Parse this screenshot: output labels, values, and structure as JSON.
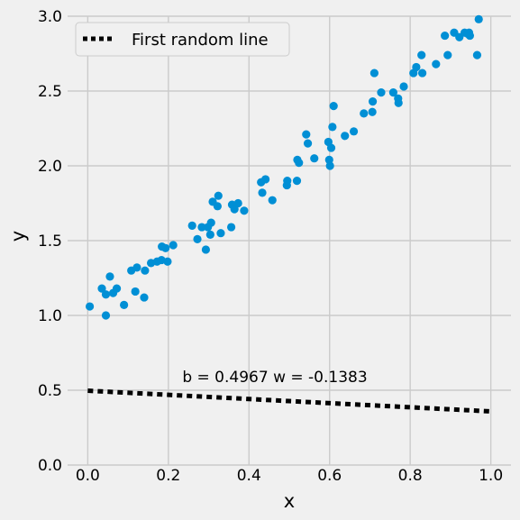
{
  "chart_data": {
    "type": "scatter",
    "xlabel": "x",
    "ylabel": "y",
    "xlim": [
      -0.05,
      1.05
    ],
    "ylim": [
      0.0,
      3.0
    ],
    "xticks": [
      0.0,
      0.2,
      0.4,
      0.6,
      0.8,
      1.0
    ],
    "xtick_labels": [
      "0.0",
      "0.2",
      "0.4",
      "0.6",
      "0.8",
      "1.0"
    ],
    "yticks": [
      0.0,
      0.5,
      1.0,
      1.5,
      2.0,
      2.5,
      3.0
    ],
    "ytick_labels": [
      "0.0",
      "0.5",
      "1.0",
      "1.5",
      "2.0",
      "2.5",
      "3.0"
    ],
    "grid": true,
    "legend_position": "top-left",
    "colors": {
      "points": "#008fd5",
      "line": "#000000",
      "background": "#f0f0f0",
      "grid": "#cbcbcb"
    },
    "annotation": {
      "text": "b = 0.4967 w = -0.1383",
      "x": 0.5,
      "y": 0.55
    },
    "line": {
      "name": "First random line",
      "style": "dotted",
      "x": [
        0.0,
        1.0
      ],
      "y": [
        0.4967,
        0.3584
      ]
    },
    "points": [
      [
        0.005,
        1.06
      ],
      [
        0.035,
        1.18
      ],
      [
        0.045,
        1.0
      ],
      [
        0.045,
        1.14
      ],
      [
        0.055,
        1.26
      ],
      [
        0.063,
        1.15
      ],
      [
        0.072,
        1.18
      ],
      [
        0.09,
        1.07
      ],
      [
        0.108,
        1.3
      ],
      [
        0.118,
        1.16
      ],
      [
        0.122,
        1.32
      ],
      [
        0.14,
        1.12
      ],
      [
        0.142,
        1.3
      ],
      [
        0.157,
        1.35
      ],
      [
        0.172,
        1.36
      ],
      [
        0.183,
        1.37
      ],
      [
        0.184,
        1.46
      ],
      [
        0.193,
        1.45
      ],
      [
        0.198,
        1.36
      ],
      [
        0.212,
        1.47
      ],
      [
        0.259,
        1.6
      ],
      [
        0.272,
        1.51
      ],
      [
        0.283,
        1.59
      ],
      [
        0.293,
        1.44
      ],
      [
        0.298,
        1.59
      ],
      [
        0.304,
        1.54
      ],
      [
        0.306,
        1.62
      ],
      [
        0.31,
        1.76
      ],
      [
        0.322,
        1.73
      ],
      [
        0.324,
        1.8
      ],
      [
        0.33,
        1.55
      ],
      [
        0.356,
        1.59
      ],
      [
        0.358,
        1.74
      ],
      [
        0.364,
        1.71
      ],
      [
        0.373,
        1.75
      ],
      [
        0.388,
        1.7
      ],
      [
        0.43,
        1.89
      ],
      [
        0.433,
        1.82
      ],
      [
        0.441,
        1.91
      ],
      [
        0.458,
        1.77
      ],
      [
        0.494,
        1.87
      ],
      [
        0.495,
        1.9
      ],
      [
        0.519,
        1.9
      ],
      [
        0.52,
        2.04
      ],
      [
        0.524,
        2.02
      ],
      [
        0.542,
        2.21
      ],
      [
        0.546,
        2.15
      ],
      [
        0.562,
        2.05
      ],
      [
        0.597,
        2.16
      ],
      [
        0.599,
        2.04
      ],
      [
        0.601,
        2.0
      ],
      [
        0.604,
        2.12
      ],
      [
        0.607,
        2.26
      ],
      [
        0.61,
        2.4
      ],
      [
        0.638,
        2.2
      ],
      [
        0.66,
        2.23
      ],
      [
        0.685,
        2.35
      ],
      [
        0.706,
        2.36
      ],
      [
        0.707,
        2.43
      ],
      [
        0.711,
        2.62
      ],
      [
        0.728,
        2.49
      ],
      [
        0.758,
        2.49
      ],
      [
        0.77,
        2.45
      ],
      [
        0.771,
        2.42
      ],
      [
        0.784,
        2.53
      ],
      [
        0.808,
        2.62
      ],
      [
        0.815,
        2.66
      ],
      [
        0.828,
        2.74
      ],
      [
        0.83,
        2.62
      ],
      [
        0.864,
        2.68
      ],
      [
        0.886,
        2.87
      ],
      [
        0.893,
        2.74
      ],
      [
        0.909,
        2.89
      ],
      [
        0.922,
        2.86
      ],
      [
        0.935,
        2.89
      ],
      [
        0.944,
        2.88
      ],
      [
        0.946,
        2.89
      ],
      [
        0.948,
        2.87
      ],
      [
        0.966,
        2.74
      ],
      [
        0.97,
        2.98
      ]
    ]
  }
}
